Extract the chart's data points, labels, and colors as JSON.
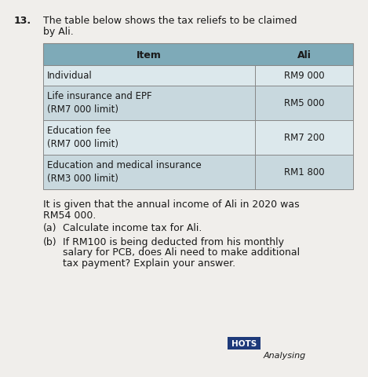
{
  "question_number": "13.",
  "question_text_line1": "The table below shows the tax reliefs to be claimed",
  "question_text_line2": "by Ali.",
  "table_headers": [
    "Item",
    "Ali"
  ],
  "table_rows": [
    [
      "Individual",
      "RM9 000"
    ],
    [
      "Life insurance and EPF\n(RM7 000 limit)",
      "RM5 000"
    ],
    [
      "Education fee\n(RM7 000 limit)",
      "RM7 200"
    ],
    [
      "Education and medical insurance\n(RM3 000 limit)",
      "RM1 800"
    ]
  ],
  "body_text_1a": "It is given that the annual income of Ali in 2020 was",
  "body_text_1b": "RM54 000.",
  "body_text_2a_label": "(a)",
  "body_text_2a_content": "Calculate income tax for Ali.",
  "body_text_2b_label": "(b)",
  "body_text_2b_content": "If RM100 is being deducted from his monthly\nsalary for PCB, does Ali need to make additional\ntax payment? Explain your answer.",
  "hots_label": "HOTS",
  "hots_sublabel": "Analysing",
  "bg_color": "#f0eeeb",
  "header_bg": "#7eaab8",
  "row_bg_1": "#dce8ec",
  "row_bg_2": "#c8d8de",
  "hots_bg": "#1e3a7a",
  "hots_text_color": "#ffffff",
  "text_color": "#1a1a1a",
  "border_color": "#888888"
}
